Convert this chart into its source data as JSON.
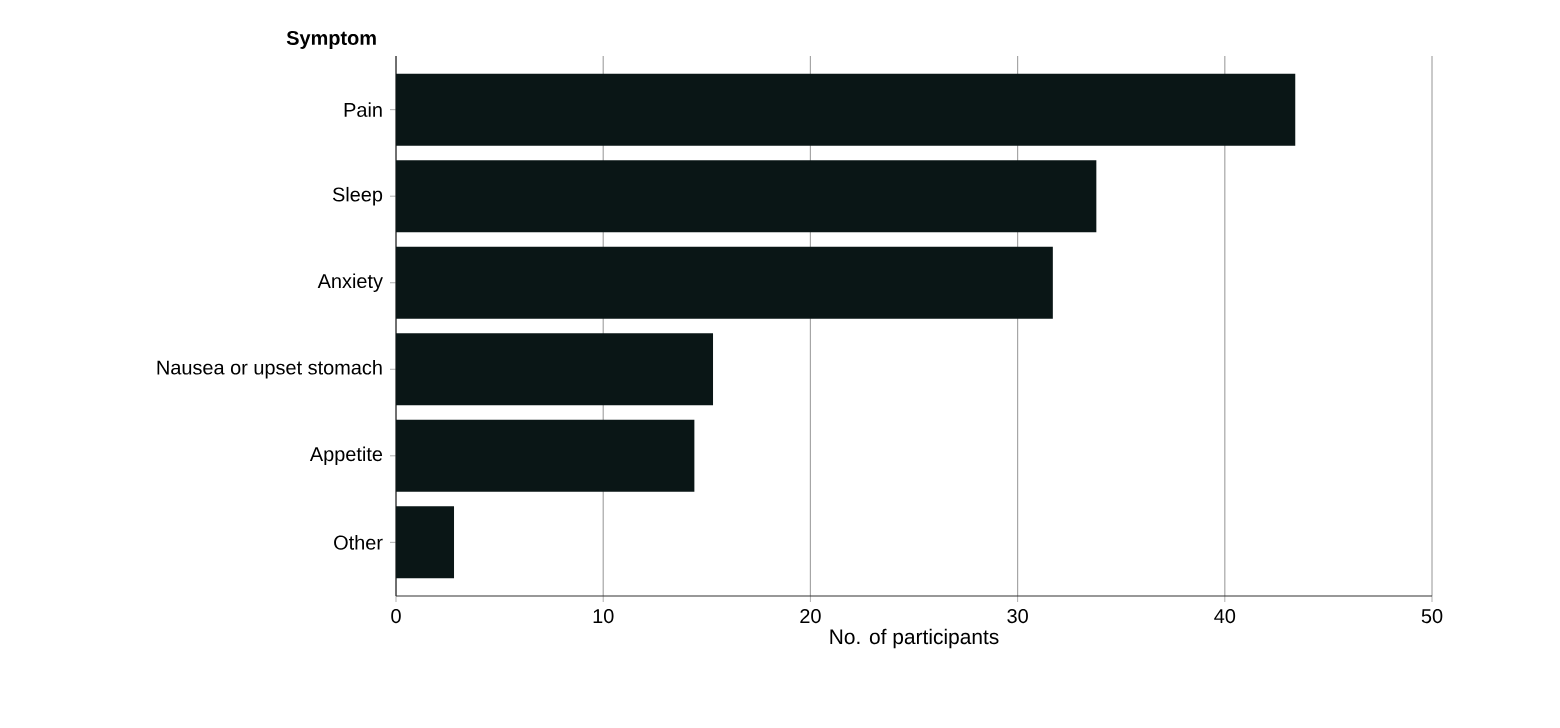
{
  "chart_data": {
    "type": "bar",
    "orientation": "horizontal",
    "ylabel": "Symptom",
    "xlabel": "No. of participants",
    "categories": [
      "Pain",
      "Sleep",
      "Anxiety",
      "Nausea or upset stomach",
      "Appetite",
      "Other"
    ],
    "values": [
      43.4,
      33.8,
      31.7,
      15.3,
      14.4,
      2.8
    ],
    "color": "#0a1616",
    "xlim": [
      0,
      50
    ],
    "xticks": [
      0,
      10,
      20,
      30,
      40,
      50
    ],
    "grid": "x"
  }
}
